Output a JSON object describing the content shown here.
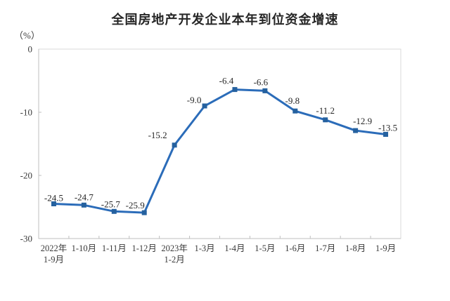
{
  "chart_data": {
    "type": "line",
    "title": "全国房地产开发企业本年到位资金增速",
    "unit_label": "（%）",
    "categories": [
      [
        "2022年",
        "1-9月"
      ],
      [
        "1-10月"
      ],
      [
        "1-11月"
      ],
      [
        "1-12月"
      ],
      [
        "2023年",
        "1-2月"
      ],
      [
        "1-3月"
      ],
      [
        "1-4月"
      ],
      [
        "1-5月"
      ],
      [
        "1-6月"
      ],
      [
        "1-7月"
      ],
      [
        "1-8月"
      ],
      [
        "1-9月"
      ]
    ],
    "values": [
      -24.5,
      -24.7,
      -25.7,
      -25.9,
      -15.2,
      -9.0,
      -6.4,
      -6.6,
      -9.8,
      -11.2,
      -12.9,
      -13.5
    ],
    "data_labels": [
      "-24.5",
      "-24.7",
      "-25.7",
      "-25.9",
      "-15.2",
      "-9.0",
      "-6.4",
      "-6.6",
      "-9.8",
      "-11.2",
      "-12.9",
      "-13.5"
    ],
    "y_tick_labels": [
      "0",
      "-10",
      "-20",
      "-30"
    ],
    "y_ticks": [
      0,
      -10,
      -20,
      -30
    ],
    "ylim": [
      -30,
      0
    ],
    "grid": false,
    "legend": "none",
    "xlabel": "",
    "ylabel": "",
    "colors": {
      "line": "#2B6CB9",
      "marker": "#25619F",
      "axis": "#BFBFBF",
      "border": "#D9D9D9",
      "data_label": "#262626",
      "axis_text": "#3A3A3A"
    },
    "label_dx": [
      0,
      0,
      -5,
      -13,
      -24,
      -15,
      -12,
      -6,
      -4,
      0,
      10,
      3
    ],
    "label_dy": [
      -4,
      -7,
      -6,
      -6,
      -10,
      -4,
      -8,
      -8,
      -10,
      -9,
      -9,
      -5
    ]
  }
}
